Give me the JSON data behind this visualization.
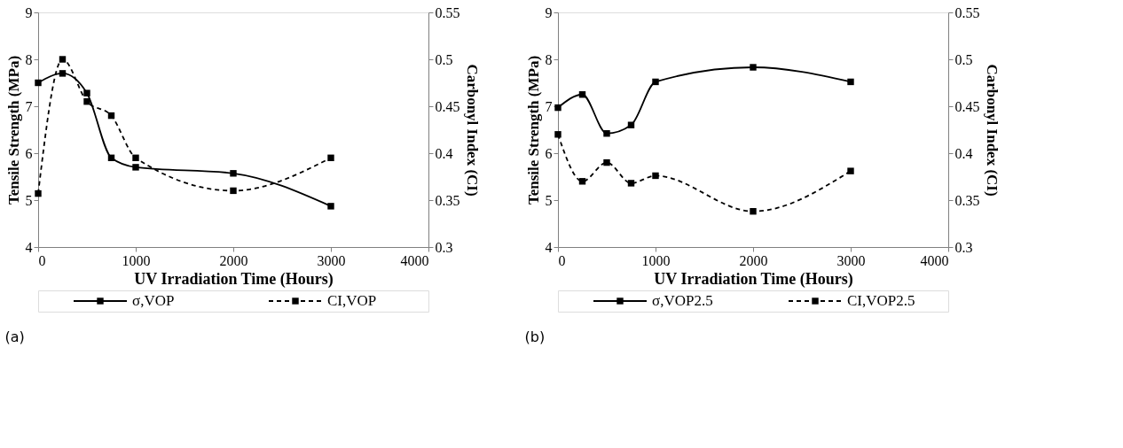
{
  "chart_data": [
    {
      "type": "line",
      "xlabel": "UV Irradiation Time (Hours)",
      "ylabel": "Tensile Strength (MPa)",
      "y2label": "Carbonyl Index (CI)",
      "annotations": [
        "(a)"
      ],
      "x": [
        0,
        250,
        500,
        750,
        1000,
        2000,
        3000
      ],
      "xlim": [
        0,
        4000
      ],
      "xticks": [
        0,
        1000,
        2000,
        3000,
        4000
      ],
      "ylim": [
        4,
        9
      ],
      "yticks": [
        4,
        5,
        6,
        7,
        8,
        9
      ],
      "y2lim": [
        0.3,
        0.55
      ],
      "y2ticks": [
        0.3,
        0.35,
        0.4,
        0.45,
        0.5,
        0.55
      ],
      "grid": false,
      "legend": "bottom",
      "marker": "square",
      "series": [
        {
          "name": "σ,VOP",
          "color": "#000000",
          "line_style": "solid",
          "values": [
            7.5,
            7.7,
            7.28,
            5.9,
            5.7,
            5.57,
            4.87
          ]
        },
        {
          "name": "CI,VOP",
          "color": "#000000",
          "line_style": "dashed",
          "axis": "y2",
          "values": [
            0.357,
            0.5,
            0.455,
            0.44,
            0.395,
            0.36,
            0.395
          ]
        }
      ]
    },
    {
      "type": "line",
      "xlabel": "UV Irradiation Time (Hours)",
      "ylabel": "Tensile Strength (MPa)",
      "y2label": "Carbonyl Index (CI)",
      "annotations": [
        "(b)"
      ],
      "x": [
        0,
        250,
        500,
        750,
        1000,
        2000,
        3000
      ],
      "xlim": [
        0,
        4000
      ],
      "xticks": [
        0,
        1000,
        2000,
        3000,
        4000
      ],
      "ylim": [
        4,
        9
      ],
      "yticks": [
        4,
        5,
        6,
        7,
        8,
        9
      ],
      "y2lim": [
        0.3,
        0.55
      ],
      "y2ticks": [
        0.3,
        0.35,
        0.4,
        0.45,
        0.5,
        0.55
      ],
      "grid": false,
      "legend": "bottom",
      "marker": "square",
      "series": [
        {
          "name": "σ,VOP2.5",
          "color": "#000000",
          "line_style": "solid",
          "values": [
            6.97,
            7.25,
            6.42,
            6.6,
            7.52,
            7.83,
            7.52
          ]
        },
        {
          "name": "CI,VOP2.5",
          "color": "#000000",
          "line_style": "dashed",
          "axis": "y2",
          "values": [
            0.42,
            0.37,
            0.39,
            0.368,
            0.376,
            0.338,
            0.381
          ]
        }
      ]
    }
  ]
}
